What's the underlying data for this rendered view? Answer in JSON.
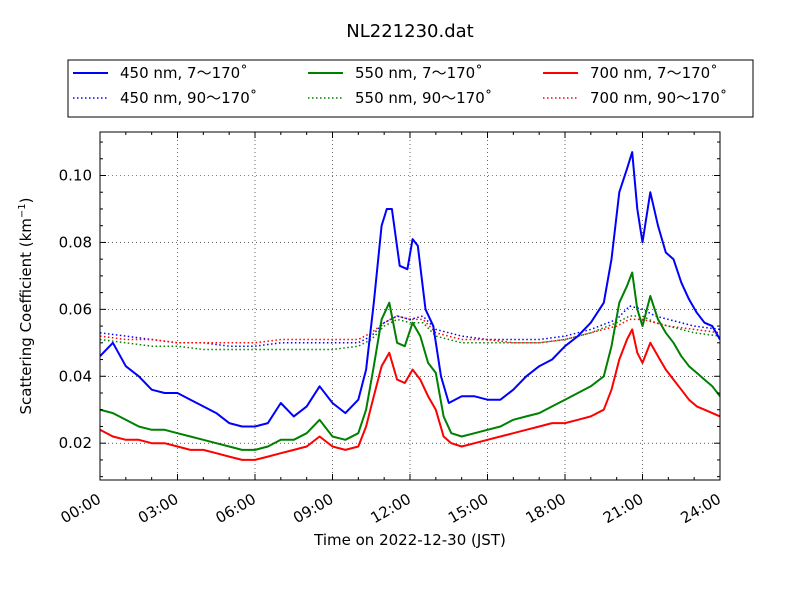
{
  "chart_data": {
    "type": "line",
    "title": "NL221230.dat",
    "xlabel": "Time on 2022-12-30 (JST)",
    "ylabel": "Scattering Coefficient (km",
    "ylabel_exp": "−1",
    "ylabel_close": ")",
    "x_unit": "hours",
    "xlim": [
      0,
      24
    ],
    "ylim": [
      0.009,
      0.113
    ],
    "x_ticks": [
      0,
      3,
      6,
      9,
      12,
      15,
      18,
      21,
      24
    ],
    "x_tick_labels": [
      "00:00",
      "03:00",
      "06:00",
      "09:00",
      "12:00",
      "15:00",
      "18:00",
      "21:00",
      "24:00"
    ],
    "y_ticks": [
      0.02,
      0.04,
      0.06,
      0.08,
      0.1
    ],
    "y_tick_labels": [
      "0.02",
      "0.04",
      "0.06",
      "0.08",
      "0.10"
    ],
    "grid": true,
    "legend_position": "top",
    "series": [
      {
        "name": "450 nm, 7～170˚",
        "color": "#0000ff",
        "style": "solid",
        "x": [
          0,
          0.5,
          1,
          1.5,
          2,
          2.5,
          3,
          3.5,
          4,
          4.5,
          5,
          5.5,
          6,
          6.5,
          7,
          7.5,
          8,
          8.5,
          9,
          9.5,
          10,
          10.3,
          10.6,
          10.9,
          11.1,
          11.3,
          11.6,
          11.9,
          12.1,
          12.3,
          12.6,
          12.9,
          13.2,
          13.5,
          14,
          14.5,
          15,
          15.5,
          16,
          16.5,
          17,
          17.5,
          18,
          18.5,
          19,
          19.5,
          19.8,
          20.1,
          20.4,
          20.6,
          20.8,
          21,
          21.3,
          21.6,
          21.9,
          22.2,
          22.5,
          22.8,
          23.1,
          23.4,
          23.7,
          24
        ],
        "y": [
          0.046,
          0.05,
          0.043,
          0.04,
          0.036,
          0.035,
          0.035,
          0.033,
          0.031,
          0.029,
          0.026,
          0.025,
          0.025,
          0.026,
          0.032,
          0.028,
          0.031,
          0.037,
          0.032,
          0.029,
          0.033,
          0.042,
          0.062,
          0.085,
          0.09,
          0.09,
          0.073,
          0.072,
          0.081,
          0.079,
          0.06,
          0.055,
          0.04,
          0.032,
          0.034,
          0.034,
          0.033,
          0.033,
          0.036,
          0.04,
          0.043,
          0.045,
          0.049,
          0.052,
          0.056,
          0.062,
          0.075,
          0.095,
          0.102,
          0.107,
          0.09,
          0.08,
          0.095,
          0.085,
          0.077,
          0.075,
          0.068,
          0.063,
          0.059,
          0.056,
          0.055,
          0.051
        ]
      },
      {
        "name": "450 nm, 90～170˚",
        "color": "#0000ff",
        "style": "dotted",
        "x": [
          0,
          1,
          2,
          3,
          4,
          5,
          6,
          7,
          8,
          9,
          10,
          10.5,
          11,
          11.5,
          12,
          12.5,
          13,
          14,
          15,
          16,
          17,
          18,
          19,
          20,
          20.5,
          21,
          21.5,
          22,
          23,
          24
        ],
        "y": [
          0.053,
          0.052,
          0.051,
          0.05,
          0.05,
          0.049,
          0.049,
          0.05,
          0.05,
          0.05,
          0.05,
          0.052,
          0.056,
          0.058,
          0.057,
          0.058,
          0.054,
          0.052,
          0.051,
          0.051,
          0.051,
          0.052,
          0.054,
          0.057,
          0.061,
          0.06,
          0.058,
          0.057,
          0.055,
          0.054
        ]
      },
      {
        "name": "550 nm, 7～170˚",
        "color": "#008000",
        "style": "solid",
        "x": [
          0,
          0.5,
          1,
          1.5,
          2,
          2.5,
          3,
          3.5,
          4,
          4.5,
          5,
          5.5,
          6,
          6.5,
          7,
          7.5,
          8,
          8.5,
          9,
          9.5,
          10,
          10.3,
          10.6,
          10.9,
          11.2,
          11.5,
          11.8,
          12.1,
          12.4,
          12.7,
          13,
          13.3,
          13.6,
          14,
          14.5,
          15,
          15.5,
          16,
          16.5,
          17,
          17.5,
          18,
          18.5,
          19,
          19.5,
          19.8,
          20.1,
          20.4,
          20.6,
          20.8,
          21,
          21.3,
          21.6,
          21.9,
          22.2,
          22.5,
          22.8,
          23.1,
          23.4,
          23.7,
          24
        ],
        "y": [
          0.03,
          0.029,
          0.027,
          0.025,
          0.024,
          0.024,
          0.023,
          0.022,
          0.021,
          0.02,
          0.019,
          0.018,
          0.018,
          0.019,
          0.021,
          0.021,
          0.023,
          0.027,
          0.022,
          0.021,
          0.023,
          0.03,
          0.043,
          0.057,
          0.062,
          0.05,
          0.049,
          0.056,
          0.052,
          0.044,
          0.041,
          0.028,
          0.023,
          0.022,
          0.023,
          0.024,
          0.025,
          0.027,
          0.028,
          0.029,
          0.031,
          0.033,
          0.035,
          0.037,
          0.04,
          0.049,
          0.062,
          0.067,
          0.071,
          0.06,
          0.055,
          0.064,
          0.057,
          0.053,
          0.05,
          0.046,
          0.043,
          0.041,
          0.039,
          0.037,
          0.034
        ]
      },
      {
        "name": "550 nm, 90～170˚",
        "color": "#008000",
        "style": "dotted",
        "x": [
          0,
          1,
          2,
          3,
          4,
          5,
          6,
          7,
          8,
          9,
          10,
          10.5,
          11,
          11.5,
          12,
          12.5,
          13,
          14,
          15,
          16,
          17,
          18,
          19,
          20,
          20.5,
          21,
          21.5,
          22,
          23,
          24
        ],
        "y": [
          0.051,
          0.05,
          0.049,
          0.049,
          0.048,
          0.048,
          0.048,
          0.048,
          0.048,
          0.048,
          0.049,
          0.051,
          0.055,
          0.057,
          0.056,
          0.056,
          0.052,
          0.05,
          0.05,
          0.05,
          0.05,
          0.051,
          0.053,
          0.056,
          0.058,
          0.058,
          0.056,
          0.055,
          0.053,
          0.052
        ]
      },
      {
        "name": "700 nm, 7～170˚",
        "color": "#ff0000",
        "style": "solid",
        "x": [
          0,
          0.5,
          1,
          1.5,
          2,
          2.5,
          3,
          3.5,
          4,
          4.5,
          5,
          5.5,
          6,
          6.5,
          7,
          7.5,
          8,
          8.5,
          9,
          9.5,
          10,
          10.3,
          10.6,
          10.9,
          11.2,
          11.5,
          11.8,
          12.1,
          12.4,
          12.7,
          13,
          13.3,
          13.6,
          14,
          14.5,
          15,
          15.5,
          16,
          16.5,
          17,
          17.5,
          18,
          18.5,
          19,
          19.5,
          19.8,
          20.1,
          20.4,
          20.6,
          20.8,
          21,
          21.3,
          21.6,
          21.9,
          22.2,
          22.5,
          22.8,
          23.1,
          23.4,
          23.7,
          24
        ],
        "y": [
          0.024,
          0.022,
          0.021,
          0.021,
          0.02,
          0.02,
          0.019,
          0.018,
          0.018,
          0.017,
          0.016,
          0.015,
          0.015,
          0.016,
          0.017,
          0.018,
          0.019,
          0.022,
          0.019,
          0.018,
          0.019,
          0.025,
          0.034,
          0.043,
          0.047,
          0.039,
          0.038,
          0.042,
          0.039,
          0.034,
          0.03,
          0.022,
          0.02,
          0.019,
          0.02,
          0.021,
          0.022,
          0.023,
          0.024,
          0.025,
          0.026,
          0.026,
          0.027,
          0.028,
          0.03,
          0.036,
          0.045,
          0.051,
          0.054,
          0.047,
          0.044,
          0.05,
          0.046,
          0.042,
          0.039,
          0.036,
          0.033,
          0.031,
          0.03,
          0.029,
          0.028
        ]
      },
      {
        "name": "700 nm, 90～170˚",
        "color": "#ff0000",
        "style": "dotted",
        "x": [
          0,
          1,
          2,
          3,
          4,
          5,
          6,
          7,
          8,
          9,
          10,
          10.5,
          11,
          11.5,
          12,
          12.5,
          13,
          14,
          15,
          16,
          17,
          18,
          19,
          20,
          20.5,
          21,
          21.5,
          22,
          23,
          24
        ],
        "y": [
          0.052,
          0.051,
          0.051,
          0.05,
          0.05,
          0.05,
          0.05,
          0.051,
          0.051,
          0.051,
          0.051,
          0.053,
          0.056,
          0.058,
          0.057,
          0.057,
          0.053,
          0.051,
          0.051,
          0.05,
          0.05,
          0.051,
          0.053,
          0.055,
          0.057,
          0.057,
          0.056,
          0.055,
          0.054,
          0.053
        ]
      }
    ]
  }
}
